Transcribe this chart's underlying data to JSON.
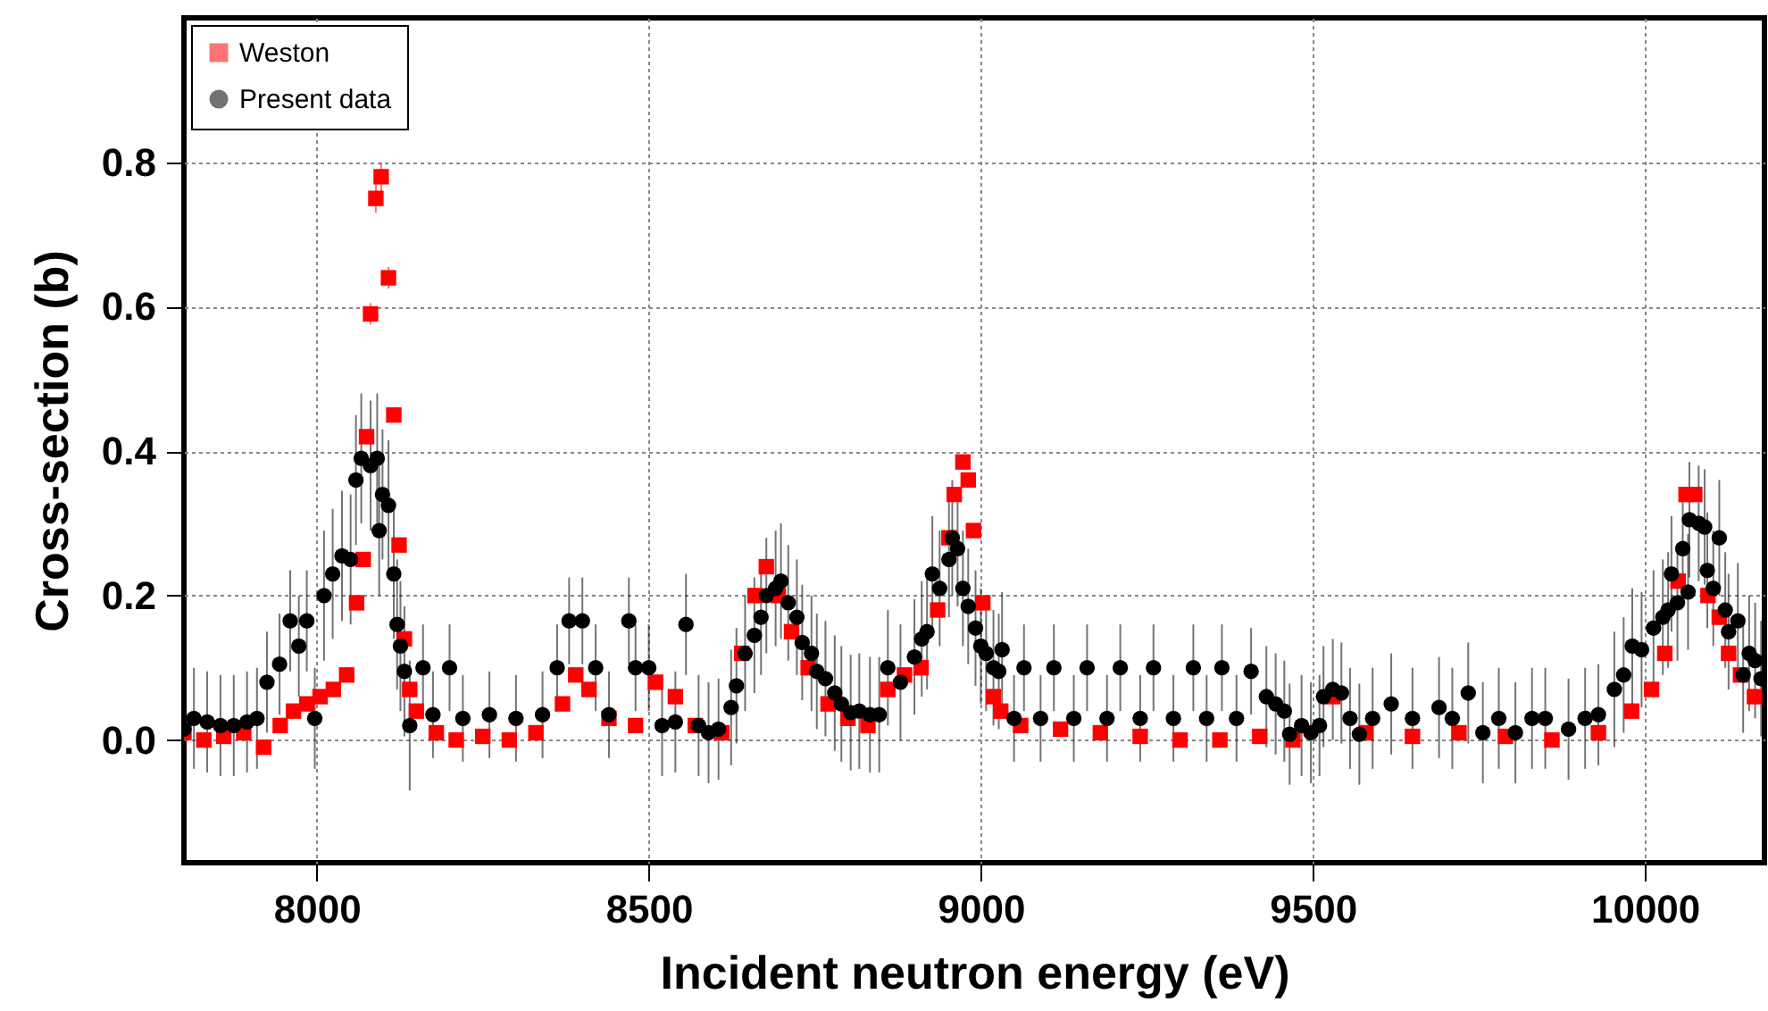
{
  "chart_data": {
    "type": "scatter",
    "xlabel": "Incident neutron energy (eV)",
    "ylabel": "Cross-section (b)",
    "xlim": [
      7800,
      10180
    ],
    "ylim": [
      -0.17,
      1.0
    ],
    "xticks": [
      8000,
      8500,
      9000,
      9500,
      10000
    ],
    "yticks": [
      {
        "value": 0,
        "label": "0.0"
      },
      0.2,
      0.4,
      0.6,
      0.8
    ],
    "grid": true,
    "legend": "top left",
    "series": [
      {
        "name": "Weston",
        "color": "#ff0000",
        "marker": "square",
        "x": [
          7800,
          7830,
          7860,
          7890,
          7920,
          7945,
          7965,
          7985,
          8005,
          8025,
          8045,
          8060,
          8070,
          8075,
          8081,
          8089,
          8097,
          8108,
          8116,
          8124,
          8132,
          8140,
          8150,
          8180,
          8210,
          8250,
          8290,
          8330,
          8370,
          8390,
          8410,
          8440,
          8480,
          8510,
          8540,
          8570,
          8610,
          8640,
          8660,
          8677,
          8695,
          8715,
          8740,
          8770,
          8800,
          8830,
          8860,
          8885,
          8910,
          8935,
          8952,
          8960,
          8973,
          8981,
          8989,
          9003,
          9019,
          9030,
          9060,
          9120,
          9180,
          9240,
          9300,
          9360,
          9420,
          9470,
          9530,
          9580,
          9650,
          9720,
          9790,
          9860,
          9930,
          9980,
          10010,
          10030,
          10050,
          10062,
          10075,
          10095,
          10112,
          10126,
          10144,
          10165
        ],
        "values": [
          0.01,
          0.0,
          0.005,
          0.01,
          -0.01,
          0.02,
          0.04,
          0.05,
          0.06,
          0.07,
          0.09,
          0.19,
          0.25,
          0.42,
          0.59,
          0.75,
          0.78,
          0.64,
          0.45,
          0.27,
          0.14,
          0.07,
          0.04,
          0.01,
          0.0,
          0.005,
          0.0,
          0.01,
          0.05,
          0.09,
          0.07,
          0.03,
          0.02,
          0.08,
          0.06,
          0.02,
          0.01,
          0.12,
          0.2,
          0.24,
          0.2,
          0.15,
          0.1,
          0.05,
          0.03,
          0.02,
          0.07,
          0.09,
          0.1,
          0.18,
          0.28,
          0.34,
          0.385,
          0.36,
          0.29,
          0.19,
          0.06,
          0.04,
          0.02,
          0.015,
          0.01,
          0.005,
          0.0,
          0.0,
          0.005,
          0.0,
          0.06,
          0.01,
          0.005,
          0.01,
          0.005,
          0.0,
          0.01,
          0.04,
          0.07,
          0.12,
          0.22,
          0.34,
          0.34,
          0.2,
          0.17,
          0.12,
          0.09,
          0.06
        ],
        "errors": [
          null,
          null,
          null,
          null,
          null,
          null,
          null,
          null,
          null,
          null,
          null,
          null,
          null,
          null,
          0.015,
          0.02,
          0.02,
          0.015,
          0.01,
          null,
          null,
          null,
          null,
          null,
          null,
          null,
          null,
          null,
          null,
          null,
          null,
          null,
          null,
          null,
          null,
          null,
          null,
          null,
          null,
          null,
          null,
          null,
          null,
          null,
          null,
          null,
          null,
          null,
          null,
          null,
          null,
          null,
          null,
          null,
          null,
          null,
          null,
          null,
          null,
          null,
          null,
          null,
          null,
          null,
          null,
          null,
          null,
          null,
          null,
          null,
          null,
          null,
          null,
          null,
          null,
          null,
          null,
          null,
          null,
          null,
          null,
          null,
          null,
          null
        ]
      },
      {
        "name": "Present data",
        "color": "#000000",
        "marker": "circle",
        "x": [
          7800,
          7815,
          7835,
          7855,
          7875,
          7895,
          7910,
          7925,
          7944,
          7960,
          7973,
          7985,
          7997,
          8011,
          8024,
          8038,
          8051,
          8059,
          8067,
          8081,
          8091,
          8094,
          8099,
          8108,
          8116,
          8121,
          8126,
          8132,
          8140,
          8160,
          8175,
          8200,
          8220,
          8260,
          8300,
          8340,
          8362,
          8380,
          8400,
          8420,
          8440,
          8470,
          8480,
          8500,
          8520,
          8540,
          8556,
          8575,
          8590,
          8605,
          8624,
          8632,
          8645,
          8659,
          8669,
          8677,
          8691,
          8699,
          8710,
          8723,
          8731,
          8745,
          8753,
          8766,
          8780,
          8790,
          8804,
          8817,
          8833,
          8847,
          8860,
          8879,
          8900,
          8911,
          8919,
          8927,
          8938,
          8952,
          8957,
          8965,
          8973,
          8981,
          8992,
          9000,
          9008,
          9019,
          9027,
          9032,
          9050,
          9065,
          9090,
          9110,
          9140,
          9160,
          9190,
          9210,
          9240,
          9260,
          9290,
          9320,
          9340,
          9363,
          9385,
          9407,
          9430,
          9444,
          9457,
          9465,
          9483,
          9497,
          9510,
          9516,
          9530,
          9543,
          9556,
          9570,
          9590,
          9618,
          9650,
          9690,
          9710,
          9734,
          9756,
          9780,
          9805,
          9830,
          9850,
          9885,
          9910,
          9930,
          9954,
          9968,
          9981,
          9995,
          10013,
          10027,
          10035,
          10040,
          10049,
          10057,
          10065,
          10067,
          10081,
          10090,
          10094,
          10103,
          10112,
          10121,
          10126,
          10140,
          10148,
          10157,
          10166,
          10175
        ],
        "values": [
          0.015,
          0.03,
          0.025,
          0.02,
          0.02,
          0.025,
          0.03,
          0.08,
          0.105,
          0.165,
          0.13,
          0.165,
          0.03,
          0.2,
          0.23,
          0.255,
          0.25,
          0.36,
          0.39,
          0.38,
          0.39,
          0.29,
          0.34,
          0.325,
          0.23,
          0.16,
          0.13,
          0.095,
          0.02,
          0.1,
          0.035,
          0.1,
          0.03,
          0.035,
          0.03,
          0.035,
          0.1,
          0.165,
          0.165,
          0.1,
          0.035,
          0.165,
          0.1,
          0.1,
          0.02,
          0.025,
          0.16,
          0.02,
          0.01,
          0.015,
          0.045,
          0.075,
          0.12,
          0.145,
          0.17,
          0.2,
          0.21,
          0.22,
          0.19,
          0.17,
          0.135,
          0.12,
          0.095,
          0.085,
          0.065,
          0.05,
          0.038,
          0.04,
          0.035,
          0.035,
          0.1,
          0.08,
          0.115,
          0.14,
          0.15,
          0.23,
          0.21,
          0.25,
          0.28,
          0.265,
          0.21,
          0.185,
          0.155,
          0.13,
          0.12,
          0.1,
          0.095,
          0.125,
          0.03,
          0.1,
          0.03,
          0.1,
          0.03,
          0.1,
          0.03,
          0.1,
          0.03,
          0.1,
          0.03,
          0.1,
          0.03,
          0.1,
          0.03,
          0.095,
          0.06,
          0.05,
          0.04,
          0.008,
          0.02,
          0.01,
          0.02,
          0.06,
          0.07,
          0.065,
          0.03,
          0.008,
          0.03,
          0.05,
          0.03,
          0.045,
          0.03,
          0.065,
          0.01,
          0.03,
          0.01,
          0.03,
          0.03,
          0.015,
          0.03,
          0.035,
          0.07,
          0.09,
          0.13,
          0.125,
          0.155,
          0.17,
          0.18,
          0.23,
          0.19,
          0.265,
          0.205,
          0.305,
          0.3,
          0.295,
          0.235,
          0.21,
          0.28,
          0.18,
          0.15,
          0.165,
          0.09,
          0.12,
          0.11,
          0.085
        ],
        "errors": [
          0.07,
          0.07,
          0.07,
          0.07,
          0.07,
          0.07,
          0.07,
          0.07,
          0.07,
          0.07,
          0.07,
          0.07,
          0.07,
          0.09,
          0.09,
          0.09,
          0.09,
          0.09,
          0.09,
          0.09,
          0.09,
          0.09,
          0.09,
          0.09,
          0.09,
          0.09,
          0.09,
          0.09,
          0.09,
          0.06,
          0.06,
          0.06,
          0.06,
          0.06,
          0.06,
          0.06,
          0.06,
          0.06,
          0.06,
          0.06,
          0.06,
          0.06,
          0.06,
          0.06,
          0.07,
          0.07,
          0.07,
          0.07,
          0.07,
          0.07,
          0.08,
          0.08,
          0.08,
          0.08,
          0.08,
          0.08,
          0.08,
          0.08,
          0.08,
          0.08,
          0.08,
          0.08,
          0.08,
          0.08,
          0.08,
          0.08,
          0.08,
          0.08,
          0.08,
          0.08,
          0.08,
          0.08,
          0.08,
          0.08,
          0.08,
          0.08,
          0.08,
          0.08,
          0.08,
          0.08,
          0.08,
          0.08,
          0.08,
          0.08,
          0.08,
          0.08,
          0.08,
          0.08,
          0.06,
          0.06,
          0.06,
          0.06,
          0.06,
          0.06,
          0.06,
          0.06,
          0.06,
          0.06,
          0.06,
          0.06,
          0.06,
          0.06,
          0.06,
          0.06,
          0.07,
          0.07,
          0.07,
          0.07,
          0.07,
          0.07,
          0.07,
          0.07,
          0.07,
          0.07,
          0.07,
          0.07,
          0.07,
          0.07,
          0.07,
          0.07,
          0.07,
          0.07,
          0.07,
          0.07,
          0.07,
          0.07,
          0.07,
          0.07,
          0.07,
          0.07,
          0.08,
          0.08,
          0.08,
          0.08,
          0.08,
          0.08,
          0.08,
          0.08,
          0.08,
          0.08,
          0.08,
          0.08,
          0.08,
          0.08,
          0.08,
          0.08,
          0.08,
          0.08,
          0.08,
          0.08,
          0.08,
          0.08,
          0.08,
          0.08
        ]
      }
    ]
  }
}
